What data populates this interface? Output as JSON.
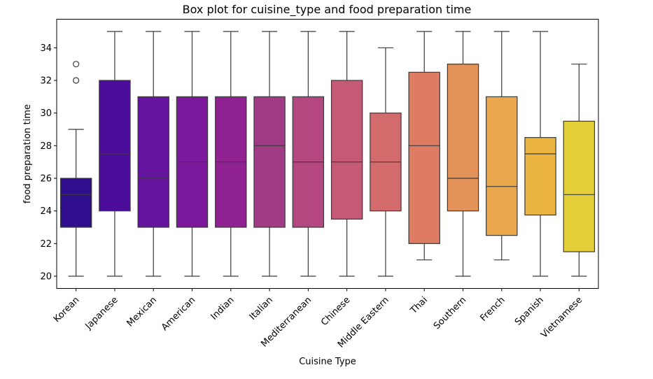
{
  "chart_data": {
    "type": "box",
    "title": "Box plot for cuisine_type and food preparation time",
    "xlabel": "Cuisine Type",
    "ylabel": "food preparation time",
    "ylim": [
      19.25,
      35.75
    ],
    "yticks": [
      20,
      22,
      24,
      26,
      28,
      30,
      32,
      34
    ],
    "grid": false,
    "categories": [
      "Korean",
      "Japanese",
      "Mexican",
      "American",
      "Indian",
      "Italian",
      "Mediterranean",
      "Chinese",
      "Middle Eastern",
      "Thai",
      "Southern",
      "French",
      "Spanish",
      "Vietnamese"
    ],
    "boxes": [
      {
        "whisker_low": 20,
        "q1": 23,
        "median": 25,
        "q3": 26,
        "whisker_high": 29,
        "outliers": [
          32,
          33
        ],
        "color": "#2f0f8e"
      },
      {
        "whisker_low": 20,
        "q1": 24,
        "median": 27.5,
        "q3": 32,
        "whisker_high": 35,
        "outliers": [],
        "color": "#4c0c9a"
      },
      {
        "whisker_low": 20,
        "q1": 23,
        "median": 26,
        "q3": 31,
        "whisker_high": 35,
        "outliers": [],
        "color": "#6514a0"
      },
      {
        "whisker_low": 20,
        "q1": 23,
        "median": 27,
        "q3": 31,
        "whisker_high": 35,
        "outliers": [],
        "color": "#7b189c"
      },
      {
        "whisker_low": 20,
        "q1": 23,
        "median": 27,
        "q3": 31,
        "whisker_high": 35,
        "outliers": [],
        "color": "#8f2192"
      },
      {
        "whisker_low": 20,
        "q1": 23,
        "median": 28,
        "q3": 31,
        "whisker_high": 35,
        "outliers": [],
        "color": "#a13b86"
      },
      {
        "whisker_low": 20,
        "q1": 23,
        "median": 27,
        "q3": 31,
        "whisker_high": 35,
        "outliers": [],
        "color": "#b4477f"
      },
      {
        "whisker_low": 20,
        "q1": 23.5,
        "median": 27,
        "q3": 32,
        "whisker_high": 35,
        "outliers": [],
        "color": "#c45a75"
      },
      {
        "whisker_low": 20,
        "q1": 24,
        "median": 27,
        "q3": 30,
        "whisker_high": 34,
        "outliers": [],
        "color": "#d36b6d"
      },
      {
        "whisker_low": 21,
        "q1": 22,
        "median": 28,
        "q3": 32.5,
        "whisker_high": 35,
        "outliers": [],
        "color": "#de7b63"
      },
      {
        "whisker_low": 20,
        "q1": 24,
        "median": 26,
        "q3": 33,
        "whisker_high": 35,
        "outliers": [],
        "color": "#e3925a"
      },
      {
        "whisker_low": 21,
        "q1": 22.5,
        "median": 25.5,
        "q3": 31,
        "whisker_high": 35,
        "outliers": [],
        "color": "#eaa74c"
      },
      {
        "whisker_low": 20,
        "q1": 23.75,
        "median": 27.5,
        "q3": 28.5,
        "whisker_high": 35,
        "outliers": [],
        "color": "#ebb441"
      },
      {
        "whisker_low": 20,
        "q1": 21.5,
        "median": 25,
        "q3": 29.5,
        "whisker_high": 33,
        "outliers": [],
        "color": "#e3cf3a"
      }
    ]
  }
}
